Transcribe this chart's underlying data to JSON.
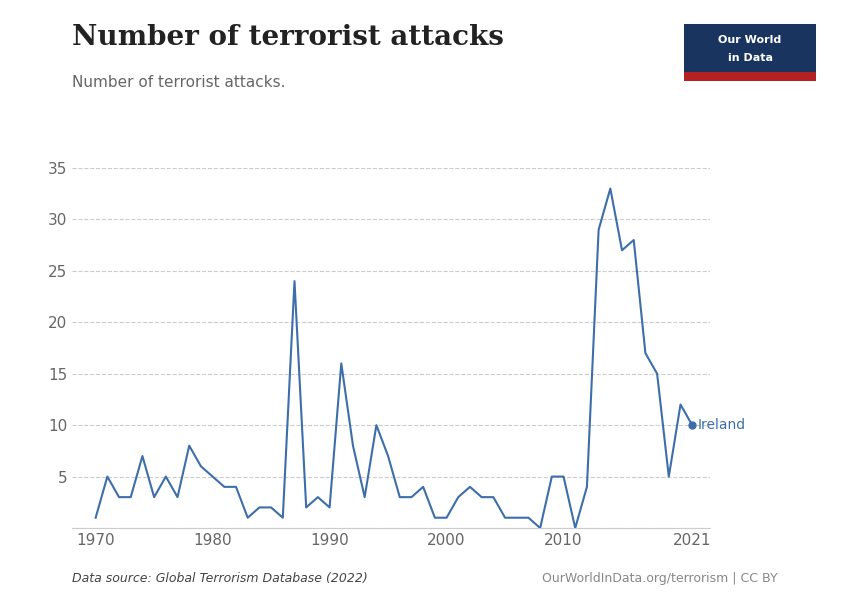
{
  "title": "Number of terrorist attacks",
  "subtitle": "Number of terrorist attacks.",
  "datasource": "Data source: Global Terrorism Database (2022)",
  "credit": "OurWorldInData.org/terrorism | CC BY",
  "country_label": "Ireland",
  "line_color": "#3d6eaa",
  "background_color": "#ffffff",
  "years": [
    1970,
    1971,
    1972,
    1973,
    1974,
    1975,
    1976,
    1977,
    1978,
    1979,
    1980,
    1981,
    1982,
    1983,
    1984,
    1985,
    1986,
    1987,
    1988,
    1989,
    1990,
    1991,
    1992,
    1993,
    1994,
    1995,
    1996,
    1997,
    1998,
    1999,
    2000,
    2001,
    2002,
    2003,
    2004,
    2005,
    2006,
    2007,
    2008,
    2009,
    2010,
    2011,
    2012,
    2013,
    2014,
    2015,
    2016,
    2017,
    2018,
    2019,
    2020,
    2021
  ],
  "values": [
    1,
    5,
    3,
    3,
    7,
    3,
    5,
    3,
    8,
    6,
    5,
    4,
    4,
    1,
    2,
    2,
    1,
    24,
    2,
    3,
    2,
    16,
    8,
    3,
    10,
    7,
    3,
    3,
    4,
    1,
    1,
    3,
    4,
    3,
    3,
    1,
    1,
    1,
    0,
    5,
    5,
    0,
    4,
    29,
    33,
    27,
    28,
    17,
    15,
    5,
    12,
    10
  ],
  "ylim": [
    0,
    35
  ],
  "yticks": [
    0,
    5,
    10,
    15,
    20,
    25,
    30,
    35
  ],
  "xlim": [
    1968,
    2022.5
  ],
  "xticks": [
    1970,
    1980,
    1990,
    2000,
    2010,
    2021
  ],
  "title_fontsize": 20,
  "subtitle_fontsize": 11,
  "tick_fontsize": 11,
  "owid_box_color": "#1a3460",
  "owid_bar_color": "#b22222",
  "owid_text_color": "#ffffff",
  "grid_color": "#cccccc",
  "tick_color": "#666666",
  "subtitle_color": "#666666",
  "bottom_text_color": "#444444",
  "credit_color": "#888888"
}
